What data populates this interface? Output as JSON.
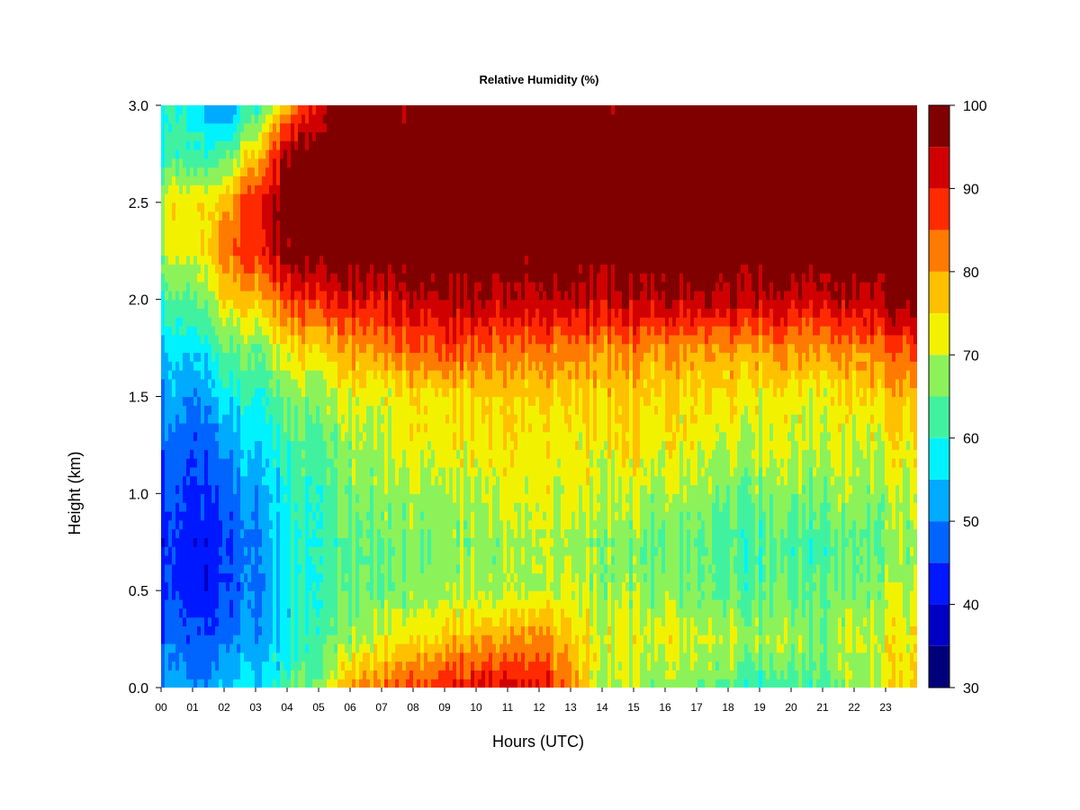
{
  "chart_data": {
    "type": "heatmap",
    "title": "Relative Humidity (%)",
    "xlabel": "Hours (UTC)",
    "ylabel": "Height (km)",
    "x_ticks": [
      "00",
      "01",
      "02",
      "03",
      "04",
      "05",
      "06",
      "07",
      "08",
      "09",
      "10",
      "11",
      "12",
      "13",
      "14",
      "15",
      "16",
      "17",
      "18",
      "19",
      "20",
      "21",
      "22",
      "23"
    ],
    "y_ticks": [
      "0.0",
      "0.5",
      "1.0",
      "1.5",
      "2.0",
      "2.5",
      "3.0"
    ],
    "xlim": [
      0,
      24
    ],
    "ylim": [
      0,
      3
    ],
    "colorbar": {
      "ticks": [
        "30",
        "40",
        "50",
        "60",
        "70",
        "80",
        "90",
        "100"
      ],
      "range": [
        30,
        100
      ],
      "levels": [
        30,
        35,
        40,
        45,
        50,
        55,
        60,
        65,
        70,
        75,
        80,
        85,
        90,
        95,
        100
      ],
      "colors": [
        "#00007a",
        "#0000c4",
        "#0018ff",
        "#0064ff",
        "#00aaff",
        "#00f2ff",
        "#40f2a0",
        "#8cf25a",
        "#f2f200",
        "#ffc000",
        "#ff7a00",
        "#ff2a00",
        "#d00000",
        "#800000"
      ]
    },
    "grid_hours": [
      0,
      1,
      2,
      3,
      4,
      5,
      6,
      7,
      8,
      9,
      10,
      11,
      12,
      13,
      14,
      15,
      16,
      17,
      18,
      19,
      20,
      21,
      22,
      23,
      24
    ],
    "grid_heights_km": [
      0,
      0.25,
      0.5,
      0.75,
      1.0,
      1.25,
      1.5,
      1.75,
      2.0,
      2.25,
      2.5,
      2.75,
      3.0
    ],
    "rh_percent": [
      [
        52,
        48,
        44,
        44,
        46,
        48,
        52,
        56,
        62,
        70,
        72,
        60,
        60
      ],
      [
        50,
        46,
        42,
        42,
        44,
        46,
        50,
        56,
        64,
        72,
        74,
        62,
        58
      ],
      [
        54,
        48,
        44,
        44,
        46,
        50,
        56,
        64,
        74,
        82,
        76,
        62,
        48
      ],
      [
        58,
        52,
        50,
        50,
        52,
        56,
        60,
        66,
        78,
        88,
        90,
        76,
        62
      ],
      [
        62,
        58,
        58,
        58,
        60,
        62,
        66,
        74,
        86,
        98,
        100,
        96,
        78
      ],
      [
        68,
        64,
        62,
        62,
        62,
        64,
        68,
        76,
        90,
        100,
        100,
        100,
        94
      ],
      [
        80,
        68,
        64,
        64,
        66,
        68,
        72,
        80,
        92,
        100,
        100,
        100,
        98
      ],
      [
        84,
        72,
        66,
        66,
        68,
        70,
        72,
        82,
        92,
        100,
        100,
        100,
        98
      ],
      [
        86,
        74,
        66,
        66,
        68,
        72,
        74,
        84,
        94,
        100,
        100,
        100,
        96
      ],
      [
        88,
        76,
        68,
        66,
        68,
        72,
        74,
        86,
        94,
        100,
        100,
        100,
        98
      ],
      [
        92,
        80,
        70,
        68,
        70,
        74,
        76,
        86,
        96,
        100,
        100,
        100,
        100
      ],
      [
        92,
        80,
        70,
        68,
        72,
        74,
        76,
        84,
        94,
        100,
        100,
        100,
        100
      ],
      [
        92,
        82,
        70,
        70,
        72,
        74,
        76,
        84,
        94,
        100,
        100,
        100,
        98
      ],
      [
        82,
        76,
        70,
        68,
        70,
        72,
        74,
        82,
        94,
        100,
        100,
        100,
        100
      ],
      [
        70,
        72,
        68,
        68,
        72,
        74,
        76,
        82,
        94,
        100,
        100,
        100,
        98
      ],
      [
        68,
        72,
        68,
        66,
        70,
        74,
        76,
        82,
        94,
        100,
        100,
        100,
        100
      ],
      [
        66,
        72,
        66,
        64,
        68,
        72,
        74,
        80,
        94,
        100,
        100,
        100,
        100
      ],
      [
        66,
        70,
        66,
        64,
        68,
        72,
        74,
        80,
        94,
        100,
        100,
        100,
        100
      ],
      [
        64,
        70,
        64,
        62,
        66,
        70,
        74,
        80,
        94,
        100,
        100,
        100,
        96
      ],
      [
        60,
        68,
        64,
        62,
        66,
        70,
        72,
        80,
        94,
        100,
        100,
        100,
        100
      ],
      [
        62,
        68,
        64,
        62,
        66,
        70,
        72,
        80,
        92,
        100,
        100,
        100,
        100
      ],
      [
        62,
        66,
        64,
        62,
        66,
        70,
        72,
        80,
        92,
        100,
        100,
        100,
        100
      ],
      [
        68,
        70,
        66,
        64,
        68,
        70,
        74,
        82,
        94,
        100,
        100,
        100,
        100
      ],
      [
        72,
        72,
        68,
        66,
        68,
        72,
        76,
        84,
        96,
        100,
        100,
        100,
        100
      ],
      [
        76,
        74,
        70,
        68,
        70,
        74,
        78,
        86,
        98,
        100,
        100,
        100,
        100
      ]
    ]
  }
}
